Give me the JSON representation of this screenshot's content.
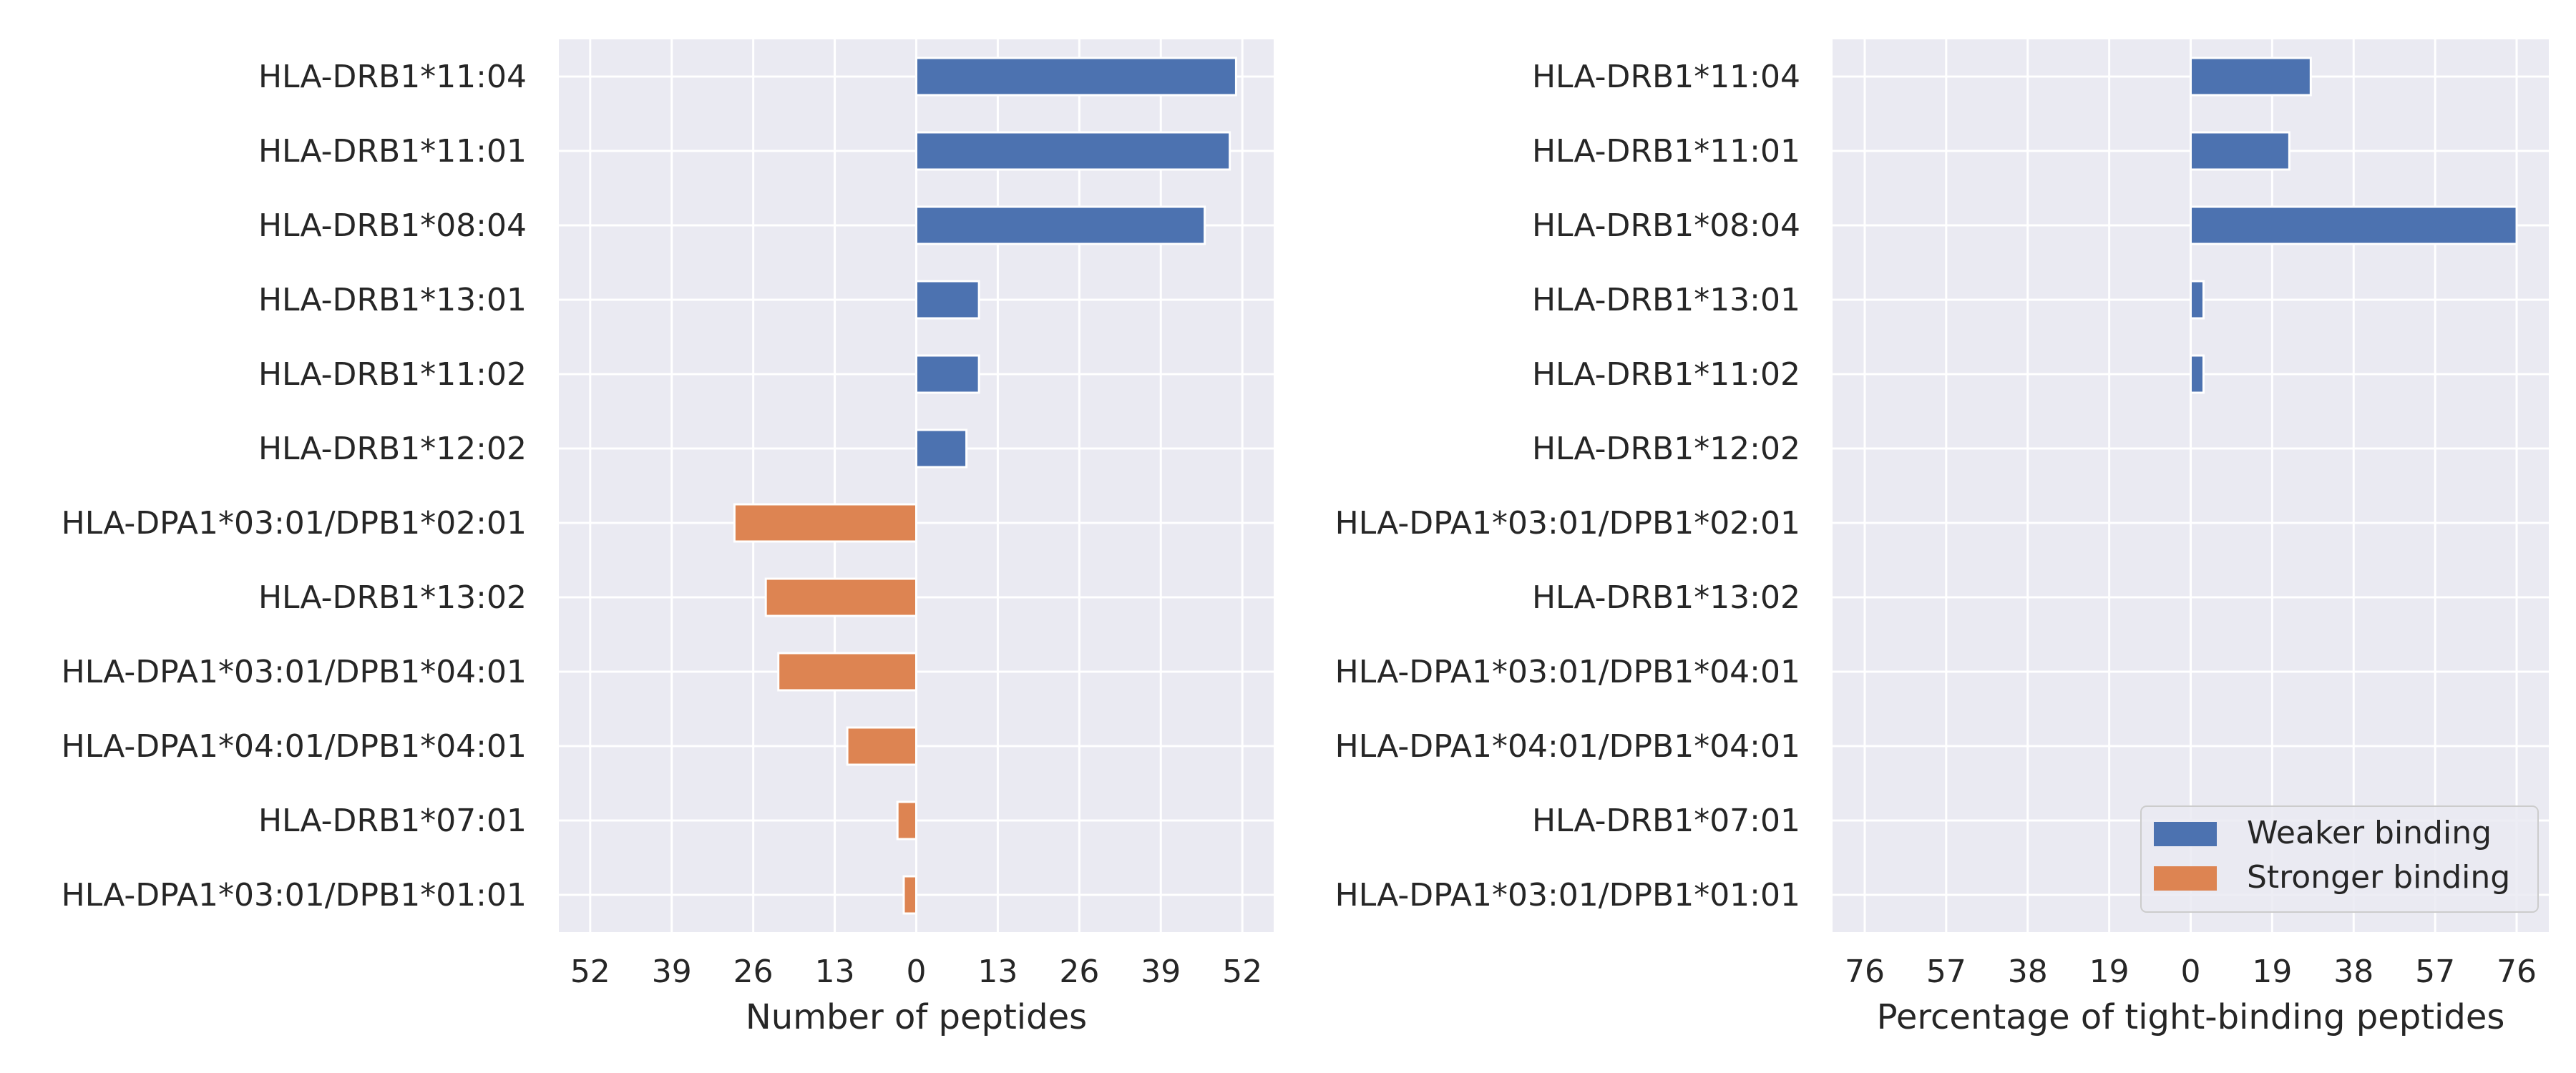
{
  "chart_data": [
    {
      "type": "bar",
      "orientation": "horizontal",
      "categories": [
        "HLA-DRB1*11:04",
        "HLA-DRB1*11:01",
        "HLA-DRB1*08:04",
        "HLA-DRB1*13:01",
        "HLA-DRB1*11:02",
        "HLA-DRB1*12:02",
        "HLA-DPA1*03:01/DPB1*02:01",
        "HLA-DRB1*13:02",
        "HLA-DPA1*03:01/DPB1*04:01",
        "HLA-DPA1*04:01/DPB1*04:01",
        "HLA-DRB1*07:01",
        "HLA-DPA1*03:01/DPB1*01:01"
      ],
      "series": [
        {
          "name": "Weaker binding",
          "color": "#4c72b0",
          "values": [
            51,
            50,
            46,
            10,
            10,
            8,
            0,
            0,
            0,
            0,
            0,
            0
          ]
        },
        {
          "name": "Stronger binding",
          "color": "#dd8452",
          "values": [
            0,
            0,
            0,
            0,
            0,
            0,
            -29,
            -24,
            -22,
            -11,
            -3,
            -2
          ]
        }
      ],
      "xlabel": "Number of peptides",
      "xlim": [
        -57,
        57
      ],
      "xticks": [
        -52,
        -39,
        -26,
        -13,
        0,
        13,
        26,
        39,
        52
      ],
      "xtick_labels": [
        "52",
        "39",
        "26",
        "13",
        "0",
        "13",
        "26",
        "39",
        "52"
      ],
      "grid": true
    },
    {
      "type": "bar",
      "orientation": "horizontal",
      "categories": [
        "HLA-DRB1*11:04",
        "HLA-DRB1*11:01",
        "HLA-DRB1*08:04",
        "HLA-DRB1*13:01",
        "HLA-DRB1*11:02",
        "HLA-DRB1*12:02",
        "HLA-DPA1*03:01/DPB1*02:01",
        "HLA-DRB1*13:02",
        "HLA-DPA1*03:01/DPB1*04:01",
        "HLA-DPA1*04:01/DPB1*04:01",
        "HLA-DRB1*07:01",
        "HLA-DPA1*03:01/DPB1*01:01"
      ],
      "series": [
        {
          "name": "Weaker binding",
          "color": "#4c72b0",
          "values": [
            28,
            23,
            76,
            3,
            3,
            0,
            0,
            0,
            0,
            0,
            0,
            0
          ]
        },
        {
          "name": "Stronger binding",
          "color": "#dd8452",
          "values": [
            0,
            0,
            0,
            0,
            0,
            0,
            0,
            0,
            0,
            0,
            0,
            0
          ]
        }
      ],
      "xlabel": "Percentage of tight-binding peptides",
      "xlim": [
        -83.5,
        83.5
      ],
      "xticks": [
        -76,
        -57,
        -38,
        -19,
        0,
        19,
        38,
        57,
        76
      ],
      "xtick_labels": [
        "76",
        "57",
        "38",
        "19",
        "0",
        "19",
        "38",
        "57",
        "76"
      ],
      "grid": true,
      "legend": {
        "placement": "lower-right",
        "entries": [
          "Weaker binding",
          "Stronger binding"
        ]
      }
    }
  ],
  "style": {
    "plot_bg": "#eaeaf2",
    "grid_color": "#ffffff",
    "text_color": "#262626",
    "bar_edge": "#ffffff"
  }
}
